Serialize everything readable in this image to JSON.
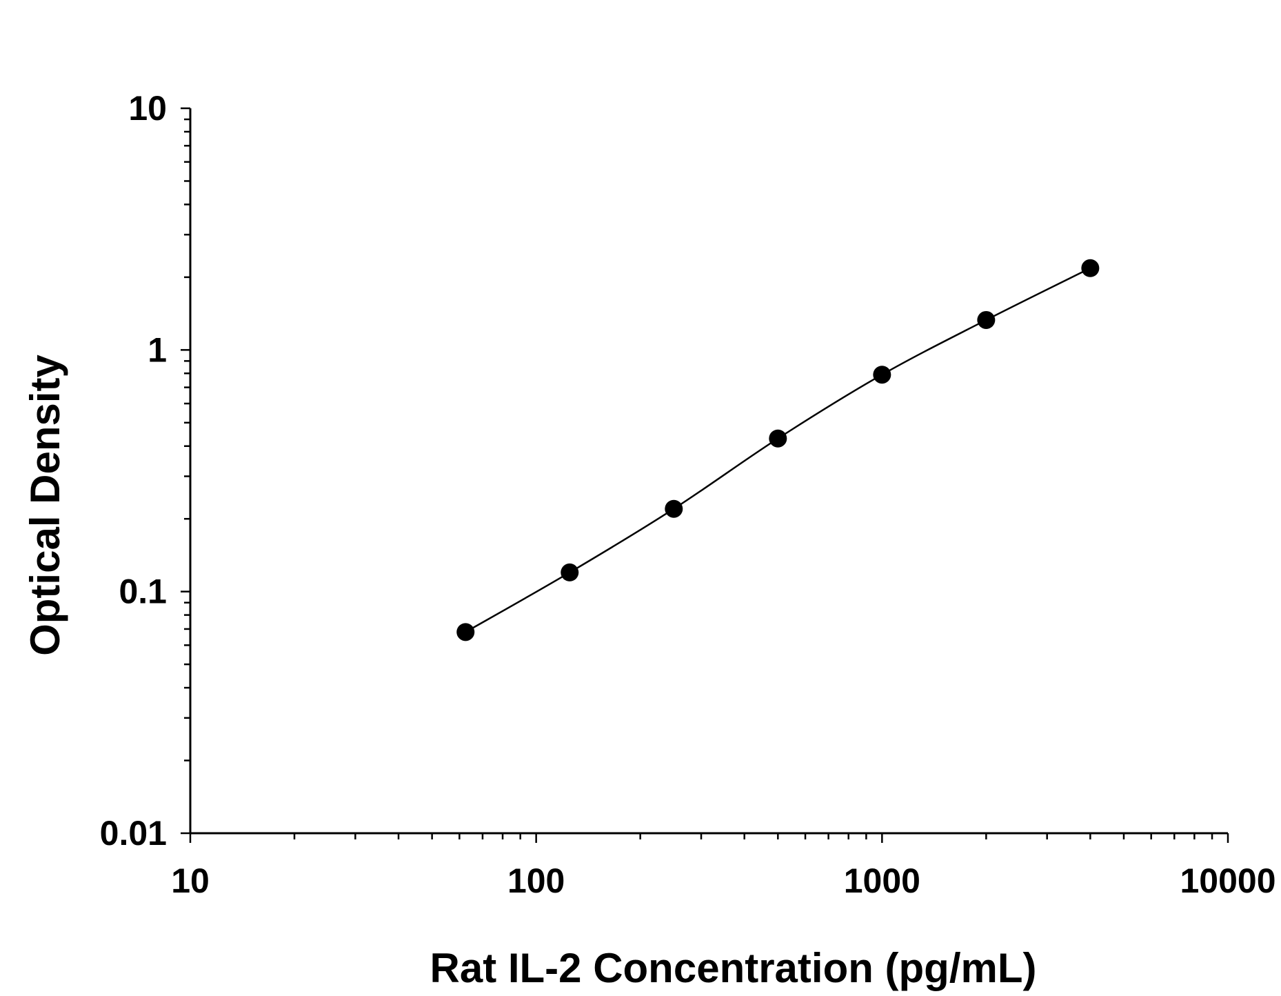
{
  "chart_data": {
    "type": "scatter",
    "title": "",
    "xlabel": "Rat IL-2 Concentration (pg/mL)",
    "ylabel": "Optical Density",
    "x_scale": "log",
    "y_scale": "log",
    "xlim": [
      10,
      10000
    ],
    "ylim": [
      0.01,
      10
    ],
    "x_ticks": [
      10,
      100,
      1000,
      10000
    ],
    "x_tick_labels": [
      "10",
      "100",
      "1000",
      "10000"
    ],
    "y_ticks": [
      0.01,
      0.1,
      1,
      10
    ],
    "y_tick_labels": [
      "0.01",
      "0.1",
      "1",
      "10"
    ],
    "grid": false,
    "legend": "none",
    "series": [
      {
        "x": [
          62.5,
          125,
          250,
          500,
          1000,
          2000,
          4000
        ],
        "y": [
          0.068,
          0.12,
          0.22,
          0.43,
          0.79,
          1.33,
          2.18
        ],
        "marker": "filled-circle",
        "fit_line": true,
        "color": "#000000"
      }
    ]
  }
}
